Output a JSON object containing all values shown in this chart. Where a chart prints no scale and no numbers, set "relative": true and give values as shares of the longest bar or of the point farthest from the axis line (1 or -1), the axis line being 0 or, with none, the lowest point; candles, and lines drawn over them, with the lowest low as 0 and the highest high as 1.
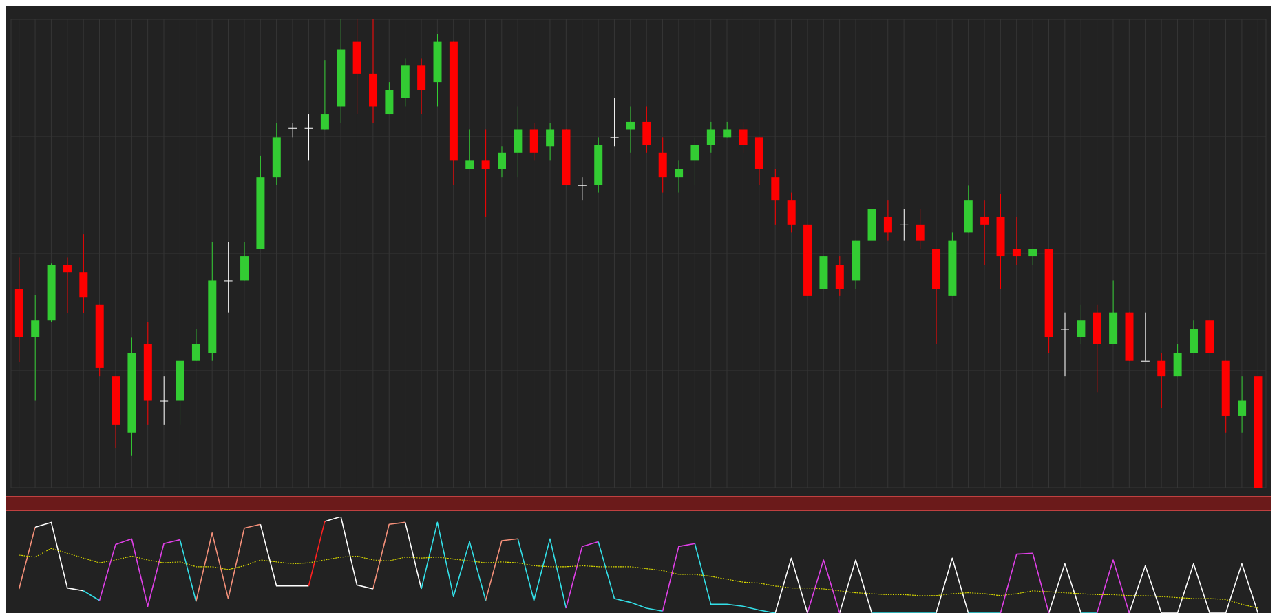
{
  "chart_data": [
    {
      "type": "candlestick",
      "relative": true,
      "grid": true,
      "categories": [
        null,
        null,
        null,
        null,
        null,
        null,
        null,
        null,
        null,
        null,
        null,
        null,
        null,
        null,
        null,
        null,
        null,
        null,
        null,
        null,
        null,
        null,
        null,
        null,
        null,
        null,
        null,
        null,
        null,
        null,
        null,
        null,
        null,
        null,
        null,
        null,
        null,
        null,
        null,
        null,
        null,
        null,
        null,
        null,
        null,
        null,
        null,
        null,
        null,
        null,
        null,
        null,
        null,
        null,
        null,
        null,
        null,
        null,
        null,
        null,
        null,
        null,
        null,
        null,
        null,
        null,
        null,
        null,
        null,
        null,
        null,
        null,
        null,
        null,
        null,
        null,
        null,
        null
      ],
      "ohlc": [
        [
          0.425,
          0.492,
          0.269,
          0.322
        ],
        [
          0.322,
          0.411,
          0.186,
          0.357
        ],
        [
          0.357,
          0.479,
          0.354,
          0.475
        ],
        [
          0.475,
          0.492,
          0.372,
          0.46
        ],
        [
          0.46,
          0.541,
          0.372,
          0.407
        ],
        [
          0.39,
          0.39,
          0.238,
          0.256
        ],
        [
          0.238,
          0.238,
          0.085,
          0.134
        ],
        [
          0.118,
          0.32,
          0.068,
          0.287
        ],
        [
          0.306,
          0.354,
          0.134,
          0.186
        ],
        [
          0.186,
          0.238,
          0.134,
          0.186
        ],
        [
          0.186,
          0.271,
          0.134,
          0.271
        ],
        [
          0.271,
          0.339,
          0.271,
          0.306
        ],
        [
          0.287,
          0.525,
          0.271,
          0.442
        ],
        [
          0.442,
          0.525,
          0.374,
          0.442
        ],
        [
          0.442,
          0.525,
          0.442,
          0.494
        ],
        [
          0.51,
          0.709,
          0.51,
          0.663
        ],
        [
          0.663,
          0.779,
          0.646,
          0.748
        ],
        [
          0.768,
          0.779,
          0.748,
          0.768
        ],
        [
          0.768,
          0.797,
          0.698,
          0.768
        ],
        [
          0.764,
          0.913,
          0.764,
          0.797
        ],
        [
          0.814,
          1,
          0.779,
          0.936
        ],
        [
          0.952,
          1,
          0.797,
          0.884
        ],
        [
          0.884,
          1,
          0.779,
          0.814
        ],
        [
          0.797,
          0.866,
          0.797,
          0.849
        ],
        [
          0.832,
          0.917,
          0.814,
          0.901
        ],
        [
          0.901,
          0.917,
          0.797,
          0.849
        ],
        [
          0.866,
          0.969,
          0.814,
          0.952
        ],
        [
          0.952,
          0.952,
          0.646,
          0.698
        ],
        [
          0.68,
          0.764,
          0.68,
          0.698
        ],
        [
          0.698,
          0.764,
          0.578,
          0.68
        ],
        [
          0.68,
          0.729,
          0.663,
          0.715
        ],
        [
          0.715,
          0.814,
          0.663,
          0.764
        ],
        [
          0.764,
          0.779,
          0.698,
          0.715
        ],
        [
          0.729,
          0.779,
          0.698,
          0.764
        ],
        [
          0.764,
          0.764,
          0.646,
          0.646
        ],
        [
          0.646,
          0.663,
          0.613,
          0.646
        ],
        [
          0.646,
          0.748,
          0.63,
          0.731
        ],
        [
          0.748,
          0.831,
          0.729,
          0.748
        ],
        [
          0.764,
          0.814,
          0.715,
          0.781
        ],
        [
          0.781,
          0.814,
          0.715,
          0.731
        ],
        [
          0.715,
          0.748,
          0.63,
          0.663
        ],
        [
          0.663,
          0.698,
          0.63,
          0.68
        ],
        [
          0.698,
          0.748,
          0.646,
          0.731
        ],
        [
          0.731,
          0.781,
          0.715,
          0.764
        ],
        [
          0.748,
          0.781,
          0.748,
          0.764
        ],
        [
          0.764,
          0.781,
          0.715,
          0.731
        ],
        [
          0.748,
          0.748,
          0.646,
          0.68
        ],
        [
          0.663,
          0.68,
          0.562,
          0.613
        ],
        [
          0.613,
          0.63,
          0.545,
          0.562
        ],
        [
          0.562,
          0.562,
          0.409,
          0.409
        ],
        [
          0.425,
          0.494,
          0.425,
          0.494
        ],
        [
          0.475,
          0.494,
          0.409,
          0.425
        ],
        [
          0.442,
          0.527,
          0.425,
          0.527
        ],
        [
          0.527,
          0.595,
          0.527,
          0.595
        ],
        [
          0.578,
          0.613,
          0.527,
          0.545
        ],
        [
          0.562,
          0.595,
          0.527,
          0.562
        ],
        [
          0.562,
          0.595,
          0.51,
          0.527
        ],
        [
          0.51,
          0.51,
          0.306,
          0.425
        ],
        [
          0.409,
          0.545,
          0.409,
          0.527
        ],
        [
          0.545,
          0.645,
          0.545,
          0.613
        ],
        [
          0.578,
          0.613,
          0.475,
          0.562
        ],
        [
          0.578,
          0.628,
          0.425,
          0.494
        ],
        [
          0.51,
          0.578,
          0.475,
          0.494
        ],
        [
          0.494,
          0.51,
          0.475,
          0.51
        ],
        [
          0.51,
          0.51,
          0.287,
          0.322
        ],
        [
          0.339,
          0.374,
          0.238,
          0.339
        ],
        [
          0.322,
          0.39,
          0.306,
          0.357
        ],
        [
          0.374,
          0.39,
          0.204,
          0.306
        ],
        [
          0.306,
          0.442,
          0.306,
          0.374
        ],
        [
          0.374,
          0.374,
          0.271,
          0.271
        ],
        [
          0.271,
          0.374,
          0.271,
          0.271
        ],
        [
          0.271,
          0.287,
          0.169,
          0.238
        ],
        [
          0.238,
          0.306,
          0.238,
          0.287
        ],
        [
          0.287,
          0.357,
          0.287,
          0.339
        ],
        [
          0.357,
          0.357,
          0.287,
          0.287
        ],
        [
          0.271,
          0.271,
          0.118,
          0.153
        ],
        [
          0.153,
          0.238,
          0.118,
          0.186
        ],
        [
          0.238,
          0.238,
          0,
          0
        ]
      ],
      "colors": [
        "#ff0000",
        "#33cc33",
        "#33cc33",
        "#ff0000",
        "#ff0000",
        "#ff0000",
        "#ff0000",
        "#33cc33",
        "#ff0000",
        "#ffffff",
        "#33cc33",
        "#33cc33",
        "#33cc33",
        "#ffffff",
        "#33cc33",
        "#33cc33",
        "#33cc33",
        "#ffffff",
        "#ffffff",
        "#33cc33",
        "#33cc33",
        "#ff0000",
        "#ff0000",
        "#33cc33",
        "#33cc33",
        "#ff0000",
        "#33cc33",
        "#ff0000",
        "#33cc33",
        "#ff0000",
        "#33cc33",
        "#33cc33",
        "#ff0000",
        "#33cc33",
        "#ff0000",
        "#ffffff",
        "#33cc33",
        "#ffffff",
        "#33cc33",
        "#ff0000",
        "#ff0000",
        "#33cc33",
        "#33cc33",
        "#33cc33",
        "#33cc33",
        "#ff0000",
        "#ff0000",
        "#ff0000",
        "#ff0000",
        "#ff0000",
        "#33cc33",
        "#ff0000",
        "#33cc33",
        "#33cc33",
        "#ff0000",
        "#ffffff",
        "#ff0000",
        "#ff0000",
        "#33cc33",
        "#33cc33",
        "#ff0000",
        "#ff0000",
        "#ff0000",
        "#33cc33",
        "#ff0000",
        "#ffffff",
        "#33cc33",
        "#ff0000",
        "#33cc33",
        "#ff0000",
        "#ffffff",
        "#ff0000",
        "#33cc33",
        "#33cc33",
        "#ff0000",
        "#ff0000",
        "#33cc33",
        "#ff0000"
      ]
    },
    {
      "type": "line",
      "relative": true,
      "legend": false,
      "categories": [
        null,
        null,
        null,
        null,
        null,
        null,
        null,
        null,
        null,
        null,
        null,
        null,
        null,
        null,
        null,
        null,
        null,
        null,
        null,
        null,
        null,
        null,
        null,
        null,
        null,
        null,
        null,
        null,
        null,
        null,
        null,
        null,
        null,
        null,
        null,
        null,
        null,
        null,
        null,
        null,
        null,
        null,
        null,
        null,
        null,
        null,
        null,
        null,
        null,
        null,
        null,
        null,
        null,
        null,
        null,
        null,
        null,
        null,
        null,
        null,
        null,
        null,
        null,
        null,
        null,
        null,
        null,
        null,
        null,
        null,
        null,
        null,
        null,
        null,
        null,
        null,
        null,
        null
      ],
      "series": [
        {
          "color": "#f4907a",
          "line_style": "solid",
          "values": [
            0.25,
            0.89,
            null,
            null,
            null,
            null,
            null,
            null,
            null,
            null,
            null,
            0.12,
            0.83,
            0.15,
            0.88,
            0.92,
            null,
            null,
            null,
            null,
            null,
            null,
            0.25,
            0.92,
            0.94,
            null,
            null,
            null,
            null,
            0.13,
            0.75,
            0.77,
            null,
            null,
            null,
            null,
            null,
            null,
            null,
            null,
            null,
            null,
            null,
            null,
            null,
            null,
            null,
            null,
            null,
            null,
            null,
            null,
            null,
            null,
            null,
            null,
            null,
            null,
            null,
            null,
            null,
            null,
            null,
            null,
            null,
            null,
            null,
            null,
            null,
            null,
            null,
            null,
            null,
            null,
            null,
            null,
            null,
            null
          ]
        },
        {
          "color": "#ffffff",
          "line_style": "solid",
          "values": [
            null,
            0.89,
            0.94,
            0.26,
            0.23,
            null,
            null,
            null,
            null,
            null,
            null,
            null,
            null,
            null,
            null,
            null,
            null,
            null,
            null,
            0.95,
            1,
            0.29,
            0.25,
            null,
            0.94,
            0.25,
            null,
            null,
            null,
            null,
            null,
            null,
            null,
            null,
            null,
            null,
            null,
            null,
            null,
            null,
            null,
            null,
            null,
            null,
            null,
            null,
            null,
            0,
            0.57,
            0,
            null,
            0,
            0.55,
            0,
            null,
            null,
            null,
            0,
            0.57,
            0,
            null,
            null,
            null,
            null,
            0,
            0.51,
            0,
            null,
            null,
            0,
            0.49,
            0,
            0,
            0.51,
            0,
            0,
            0.51,
            0
          ]
        },
        {
          "color": "#ffffff",
          "line_style": "solid",
          "values": [
            null,
            null,
            null,
            null,
            null,
            null,
            null,
            null,
            null,
            null,
            null,
            null,
            null,
            null,
            null,
            0.92,
            0.28,
            0.28,
            0.28,
            null,
            null,
            null,
            null,
            null,
            null,
            null,
            null,
            null,
            null,
            null,
            null,
            null,
            null,
            null,
            null,
            null,
            null,
            null,
            null,
            null,
            null,
            null,
            null,
            null,
            null,
            null,
            null,
            null,
            null,
            null,
            null,
            null,
            null,
            null,
            null,
            null,
            null,
            null,
            null,
            null,
            null,
            null,
            null,
            null,
            null,
            null,
            null,
            null,
            null,
            null,
            null,
            null,
            null,
            null,
            null,
            null,
            null,
            null
          ]
        },
        {
          "color": "#33e0e8",
          "line_style": "solid",
          "values": [
            null,
            null,
            null,
            null,
            0.23,
            0.13,
            null,
            null,
            null,
            null,
            0.76,
            0.12,
            null,
            null,
            null,
            null,
            null,
            null,
            null,
            null,
            null,
            null,
            null,
            null,
            null,
            0.25,
            0.94,
            0.17,
            0.74,
            0.13,
            null,
            0.77,
            0.13,
            0.77,
            0.05,
            null,
            0.74,
            0.15,
            0.11,
            0.05,
            0.02,
            null,
            0.72,
            0.09,
            0.09,
            0.07,
            0.03,
            0,
            null,
            null,
            null,
            null,
            null,
            0,
            0,
            0,
            0,
            0,
            null,
            0,
            0,
            0,
            null,
            null,
            null,
            null,
            0,
            0,
            null,
            null,
            null,
            null,
            null,
            null,
            null,
            null,
            null,
            null
          ]
        },
        {
          "color": "#e040e8",
          "line_style": "solid",
          "values": [
            null,
            null,
            null,
            null,
            null,
            0.13,
            0.71,
            0.77,
            0.07,
            0.72,
            0.76,
            null,
            null,
            null,
            null,
            null,
            null,
            null,
            null,
            null,
            null,
            null,
            null,
            null,
            null,
            null,
            null,
            null,
            null,
            null,
            null,
            null,
            null,
            null,
            0.05,
            0.69,
            0.74,
            null,
            null,
            null,
            0.02,
            0.69,
            0.72,
            null,
            null,
            null,
            null,
            null,
            null,
            0,
            0.55,
            0,
            null,
            null,
            null,
            null,
            null,
            null,
            null,
            null,
            null,
            0,
            0.61,
            0.62,
            0,
            null,
            null,
            0,
            0.55,
            0,
            null,
            null,
            null,
            null,
            null,
            null,
            null,
            null
          ]
        },
        {
          "color": "#ff2020",
          "line_style": "solid",
          "values": [
            null,
            null,
            null,
            null,
            null,
            null,
            null,
            null,
            null,
            null,
            null,
            null,
            null,
            null,
            null,
            null,
            null,
            null,
            0.28,
            0.95,
            null,
            null,
            null,
            null,
            null,
            null,
            null,
            null,
            null,
            null,
            null,
            null,
            null,
            null,
            null,
            null,
            null,
            null,
            null,
            null,
            null,
            null,
            null,
            null,
            null,
            null,
            null,
            null,
            null,
            null,
            null,
            null,
            null,
            null,
            null,
            null,
            null,
            null,
            null,
            null,
            null,
            null,
            null,
            null,
            null,
            null,
            null,
            null,
            null,
            null,
            null,
            null,
            null,
            null,
            null,
            null,
            null,
            null
          ]
        },
        {
          "color": "#d8d800",
          "line_style": "dotted",
          "values": [
            0.6,
            0.58,
            0.67,
            0.62,
            0.57,
            0.52,
            0.55,
            0.59,
            0.55,
            0.52,
            0.53,
            0.48,
            0.48,
            0.45,
            0.49,
            0.55,
            0.53,
            0.51,
            0.52,
            0.55,
            0.58,
            0.59,
            0.55,
            0.54,
            0.58,
            0.57,
            0.58,
            0.56,
            0.54,
            0.52,
            0.53,
            0.52,
            0.49,
            0.48,
            0.48,
            0.49,
            0.48,
            0.48,
            0.48,
            0.46,
            0.44,
            0.4,
            0.4,
            0.38,
            0.35,
            0.32,
            0.31,
            0.28,
            0.26,
            0.26,
            0.25,
            0.23,
            0.21,
            0.2,
            0.19,
            0.19,
            0.18,
            0.18,
            0.2,
            0.21,
            0.2,
            0.18,
            0.2,
            0.23,
            0.22,
            0.21,
            0.2,
            0.19,
            0.19,
            0.18,
            0.18,
            0.17,
            0.16,
            0.15,
            0.15,
            0.14,
            0.09,
            0.05
          ]
        }
      ]
    }
  ]
}
